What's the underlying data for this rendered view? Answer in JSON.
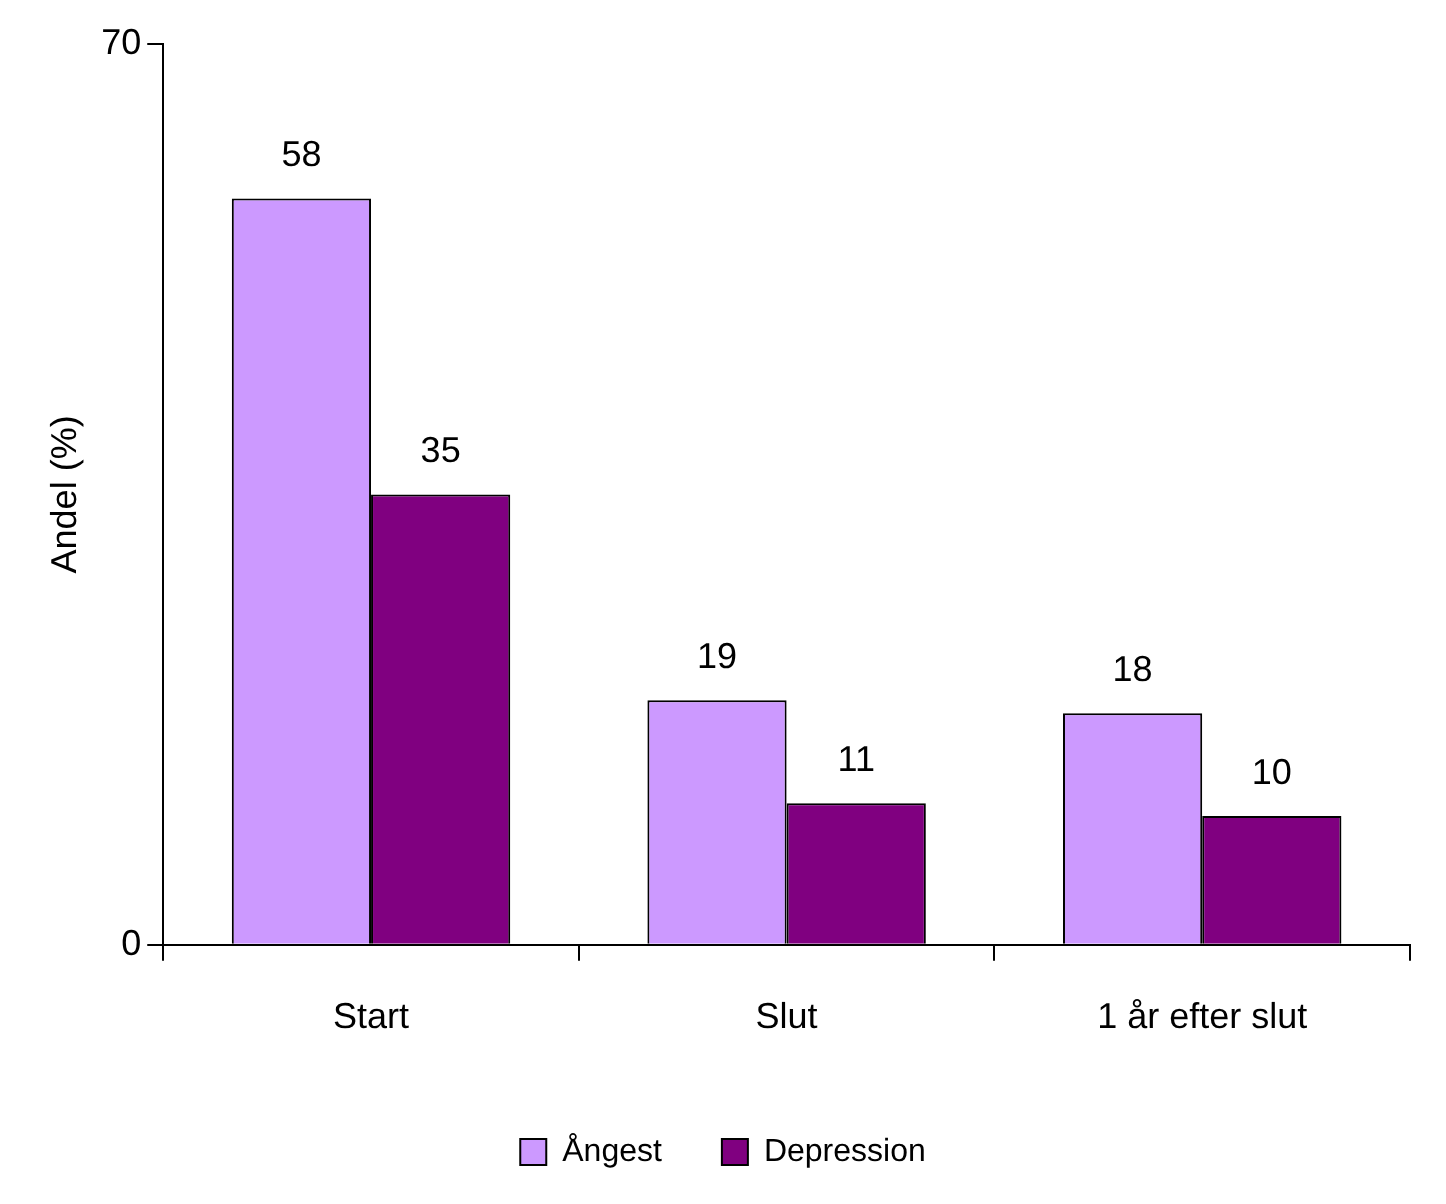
{
  "chart_data": {
    "type": "bar",
    "ylabel": "Andel (%)",
    "categories": [
      "Start",
      "Slut",
      "1 år efter slut"
    ],
    "series": [
      {
        "name": "Ångest",
        "color": "#cc99ff",
        "values": [
          58,
          19,
          18
        ]
      },
      {
        "name": "Depression",
        "color": "#800080",
        "values": [
          35,
          11,
          10
        ]
      }
    ],
    "ylim": [
      0,
      70
    ],
    "yticks": [
      0,
      70
    ],
    "grid": false,
    "legend": "bottom",
    "data_labels": true
  }
}
